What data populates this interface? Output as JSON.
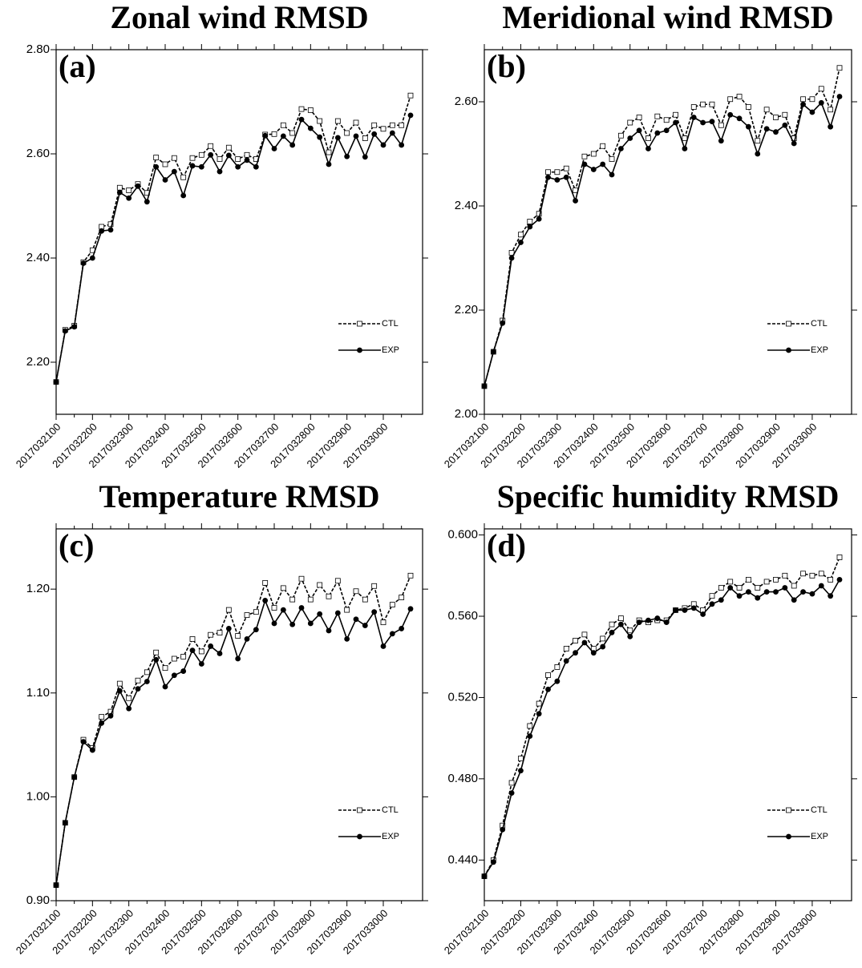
{
  "chart_data": [
    {
      "type": "line",
      "title": "Zonal wind RMSD",
      "panel_label": "(a)",
      "categories": [
        "2017032100",
        null,
        null,
        null,
        "2017032200",
        null,
        null,
        null,
        "2017032300",
        null,
        null,
        null,
        "2017032400",
        null,
        null,
        null,
        "2017032500",
        null,
        null,
        null,
        "2017032600",
        null,
        null,
        null,
        "2017032700",
        null,
        null,
        null,
        "2017032800",
        null,
        null,
        null,
        "2017032900",
        null,
        null,
        null,
        "2017033000",
        null,
        null,
        null
      ],
      "series": [
        {
          "name": "CTL",
          "color": "#000000",
          "linestyle": "dashed",
          "marker": "square",
          "values": [
            2.162,
            2.262,
            2.27,
            2.392,
            2.415,
            2.46,
            2.465,
            2.535,
            2.53,
            2.542,
            2.525,
            2.593,
            2.58,
            2.592,
            2.555,
            2.592,
            2.598,
            2.615,
            2.59,
            2.612,
            2.59,
            2.598,
            2.59,
            2.637,
            2.638,
            2.655,
            2.64,
            2.686,
            2.684,
            2.663,
            2.603,
            2.663,
            2.64,
            2.66,
            2.63,
            2.655,
            2.648,
            2.655,
            2.655,
            2.712
          ]
        },
        {
          "name": "EXP",
          "color": "#000000",
          "linestyle": "solid",
          "marker": "circle",
          "values": [
            2.162,
            2.26,
            2.268,
            2.39,
            2.4,
            2.452,
            2.454,
            2.526,
            2.515,
            2.538,
            2.508,
            2.575,
            2.55,
            2.566,
            2.52,
            2.577,
            2.575,
            2.598,
            2.566,
            2.597,
            2.575,
            2.588,
            2.575,
            2.635,
            2.61,
            2.634,
            2.617,
            2.666,
            2.649,
            2.632,
            2.58,
            2.631,
            2.595,
            2.634,
            2.594,
            2.638,
            2.617,
            2.64,
            2.617,
            2.674
          ]
        }
      ],
      "ylim": [
        2.1,
        2.8
      ],
      "yticks": [
        {
          "value": 2.2,
          "label": "2.20"
        },
        {
          "value": 2.4,
          "label": "2.40"
        },
        {
          "value": 2.6,
          "label": "2.60"
        },
        {
          "value": 2.8,
          "label": "2.80"
        }
      ],
      "legend": "lower right",
      "grid": false
    },
    {
      "type": "line",
      "title": "Meridional wind RMSD",
      "panel_label": "(b)",
      "categories": [
        "2017032100",
        null,
        null,
        null,
        "2017032200",
        null,
        null,
        null,
        "2017032300",
        null,
        null,
        null,
        "2017032400",
        null,
        null,
        null,
        "2017032500",
        null,
        null,
        null,
        "2017032600",
        null,
        null,
        null,
        "2017032700",
        null,
        null,
        null,
        "2017032800",
        null,
        null,
        null,
        "2017032900",
        null,
        null,
        null,
        "2017033000",
        null,
        null,
        null
      ],
      "series": [
        {
          "name": "CTL",
          "color": "#000000",
          "linestyle": "dashed",
          "marker": "square",
          "values": [
            2.054,
            2.12,
            2.18,
            2.31,
            2.345,
            2.37,
            2.385,
            2.465,
            2.465,
            2.472,
            2.43,
            2.495,
            2.5,
            2.515,
            2.49,
            2.535,
            2.56,
            2.57,
            2.53,
            2.572,
            2.565,
            2.575,
            2.53,
            2.59,
            2.595,
            2.595,
            2.555,
            2.605,
            2.61,
            2.59,
            2.525,
            2.585,
            2.57,
            2.575,
            2.53,
            2.605,
            2.605,
            2.625,
            2.585,
            2.665
          ]
        },
        {
          "name": "EXP",
          "color": "#000000",
          "linestyle": "solid",
          "marker": "circle",
          "values": [
            2.054,
            2.12,
            2.175,
            2.3,
            2.33,
            2.36,
            2.375,
            2.455,
            2.45,
            2.455,
            2.41,
            2.48,
            2.47,
            2.48,
            2.46,
            2.51,
            2.53,
            2.545,
            2.51,
            2.54,
            2.545,
            2.56,
            2.51,
            2.57,
            2.56,
            2.562,
            2.525,
            2.575,
            2.568,
            2.552,
            2.5,
            2.548,
            2.542,
            2.555,
            2.52,
            2.595,
            2.58,
            2.598,
            2.552,
            2.61
          ]
        }
      ],
      "ylim": [
        2.0,
        2.7
      ],
      "yticks": [
        {
          "value": 2.0,
          "label": "2.00"
        },
        {
          "value": 2.2,
          "label": "2.20"
        },
        {
          "value": 2.4,
          "label": "2.40"
        },
        {
          "value": 2.6,
          "label": "2.60"
        }
      ],
      "legend": "lower right",
      "grid": false
    },
    {
      "type": "line",
      "title": "Temperature RMSD",
      "panel_label": "(c)",
      "categories": [
        "2017032100",
        null,
        null,
        null,
        "2017032200",
        null,
        null,
        null,
        "2017032300",
        null,
        null,
        null,
        "2017032400",
        null,
        null,
        null,
        "2017032500",
        null,
        null,
        null,
        "2017032600",
        null,
        null,
        null,
        "2017032700",
        null,
        null,
        null,
        "2017032800",
        null,
        null,
        null,
        "2017032900",
        null,
        null,
        null,
        "2017033000",
        null,
        null,
        null
      ],
      "series": [
        {
          "name": "CTL",
          "color": "#000000",
          "linestyle": "dashed",
          "marker": "square",
          "values": [
            0.915,
            0.975,
            1.019,
            1.055,
            1.047,
            1.077,
            1.082,
            1.109,
            1.095,
            1.112,
            1.12,
            1.139,
            1.124,
            1.133,
            1.135,
            1.152,
            1.14,
            1.156,
            1.158,
            1.18,
            1.155,
            1.175,
            1.178,
            1.206,
            1.182,
            1.201,
            1.19,
            1.21,
            1.19,
            1.204,
            1.193,
            1.208,
            1.18,
            1.198,
            1.19,
            1.203,
            1.168,
            1.185,
            1.192,
            1.213
          ]
        },
        {
          "name": "EXP",
          "color": "#000000",
          "linestyle": "solid",
          "marker": "circle",
          "values": [
            0.915,
            0.975,
            1.019,
            1.053,
            1.045,
            1.071,
            1.078,
            1.102,
            1.085,
            1.104,
            1.111,
            1.132,
            1.106,
            1.117,
            1.121,
            1.141,
            1.128,
            1.145,
            1.138,
            1.162,
            1.133,
            1.152,
            1.161,
            1.189,
            1.167,
            1.18,
            1.166,
            1.182,
            1.167,
            1.176,
            1.16,
            1.177,
            1.152,
            1.171,
            1.165,
            1.178,
            1.145,
            1.157,
            1.162,
            1.181
          ]
        }
      ],
      "ylim": [
        0.9,
        1.258
      ],
      "yticks": [
        {
          "value": 0.9,
          "label": "0.90"
        },
        {
          "value": 1.0,
          "label": "1.00"
        },
        {
          "value": 1.1,
          "label": "1.10"
        },
        {
          "value": 1.2,
          "label": "1.20"
        }
      ],
      "legend": "lower right",
      "grid": false
    },
    {
      "type": "line",
      "title": "Specific humidity RMSD",
      "panel_label": "(d)",
      "categories": [
        "2017032100",
        null,
        null,
        null,
        "2017032200",
        null,
        null,
        null,
        "2017032300",
        null,
        null,
        null,
        "2017032400",
        null,
        null,
        null,
        "2017032500",
        null,
        null,
        null,
        "2017032600",
        null,
        null,
        null,
        "2017032700",
        null,
        null,
        null,
        "2017032800",
        null,
        null,
        null,
        "2017032900",
        null,
        null,
        null,
        "2017033000",
        null,
        null,
        null
      ],
      "series": [
        {
          "name": "CTL",
          "color": "#000000",
          "linestyle": "dashed",
          "marker": "square",
          "values": [
            0.432,
            0.44,
            0.457,
            0.478,
            0.49,
            0.506,
            0.517,
            0.531,
            0.535,
            0.544,
            0.548,
            0.551,
            0.544,
            0.549,
            0.556,
            0.559,
            0.553,
            0.558,
            0.557,
            0.558,
            0.558,
            0.563,
            0.564,
            0.566,
            0.563,
            0.57,
            0.574,
            0.577,
            0.574,
            0.578,
            0.574,
            0.577,
            0.578,
            0.58,
            0.575,
            0.581,
            0.58,
            0.581,
            0.578,
            0.589
          ]
        },
        {
          "name": "EXP",
          "color": "#000000",
          "linestyle": "solid",
          "marker": "circle",
          "values": [
            0.432,
            0.439,
            0.455,
            0.473,
            0.484,
            0.501,
            0.512,
            0.524,
            0.528,
            0.538,
            0.542,
            0.547,
            0.542,
            0.545,
            0.552,
            0.556,
            0.55,
            0.557,
            0.558,
            0.559,
            0.557,
            0.563,
            0.563,
            0.564,
            0.561,
            0.566,
            0.568,
            0.574,
            0.57,
            0.572,
            0.569,
            0.572,
            0.572,
            0.574,
            0.568,
            0.572,
            0.571,
            0.575,
            0.57,
            0.578
          ]
        }
      ],
      "ylim": [
        0.42,
        0.603
      ],
      "yticks": [
        {
          "value": 0.44,
          "label": "0.440"
        },
        {
          "value": 0.48,
          "label": "0.480"
        },
        {
          "value": 0.52,
          "label": "0.520"
        },
        {
          "value": 0.56,
          "label": "0.560"
        },
        {
          "value": 0.6,
          "label": "0.600"
        }
      ],
      "legend": "lower right",
      "grid": false
    }
  ]
}
